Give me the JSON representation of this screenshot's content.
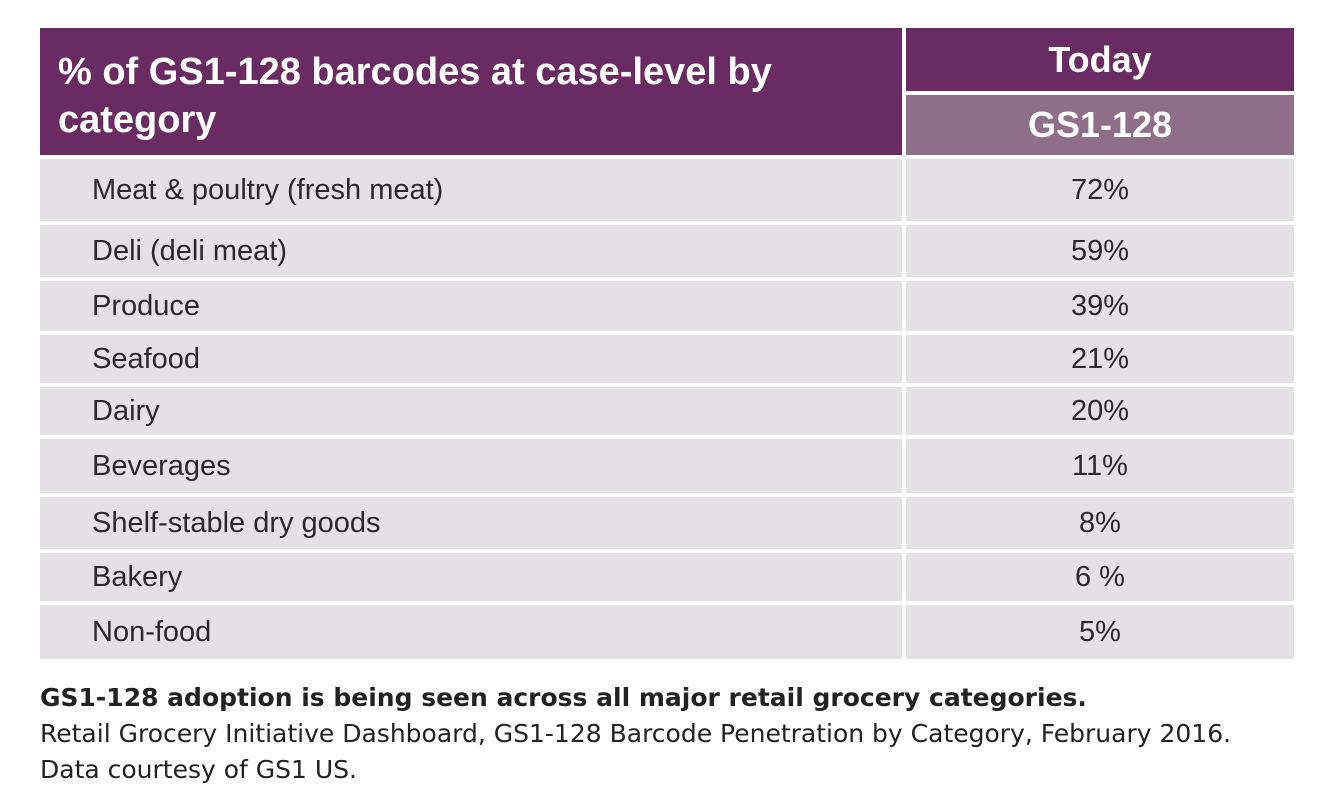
{
  "chart_data": {
    "type": "table",
    "title": "% of GS1-128 barcodes at case-level by category",
    "column_header_top": "Today",
    "column_header_sub": "GS1-128",
    "categories": [
      "Meat & poultry (fresh meat)",
      "Deli (deli meat)",
      "Produce",
      "Seafood",
      "Dairy",
      "Beverages",
      "Shelf-stable dry goods",
      "Bakery",
      "Non-food"
    ],
    "value_labels": [
      "72%",
      "59%",
      "39%",
      "21%",
      "20%",
      "11%",
      "8%",
      "6 %",
      "5%"
    ],
    "values": [
      72,
      59,
      39,
      21,
      20,
      11,
      8,
      6,
      5
    ]
  },
  "caption": {
    "headline": "GS1-128 adoption is being seen across all major retail grocery categories.",
    "source": "Retail Grocery Initiative Dashboard, GS1-128 Barcode Penetration by Category, February 2016.",
    "credit": "Data courtesy of GS1 US."
  },
  "colors": {
    "header": "#6a2a62",
    "subheader": "#8e6e88",
    "row": "#e3e1e3"
  }
}
